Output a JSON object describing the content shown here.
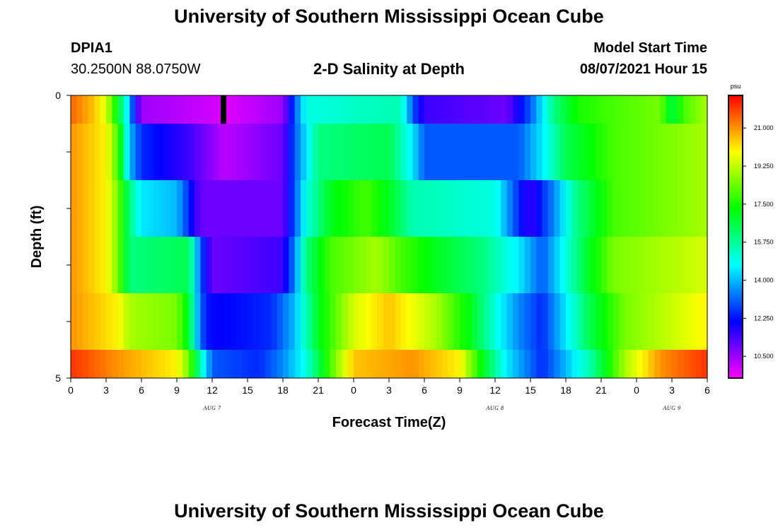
{
  "header": {
    "title_top": "University of Southern Mississippi Ocean Cube",
    "title_bottom": "University of Southern Mississippi Ocean Cube",
    "station": "DPIA1",
    "coords": "30.2500N  88.0750W",
    "plot_title": "2-D Salinity at Depth",
    "model_label": "Model Start Time",
    "model_time": "08/07/2021 Hour 15"
  },
  "chart_data": {
    "type": "heatmap",
    "title": "2-D Salinity at Depth",
    "xlabel": "Forecast Time(Z)",
    "ylabel": "Depth (ft)",
    "x_tick_labels": [
      "0",
      "3",
      "6",
      "9",
      "12",
      "15",
      "18",
      "21",
      "0",
      "3",
      "6",
      "9",
      "12",
      "15",
      "18",
      "21",
      "0",
      "3",
      "6"
    ],
    "y_tick_labels": [
      "0",
      "5"
    ],
    "y_range": [
      0,
      5
    ],
    "x_hours": [
      0,
      54
    ],
    "date_labels": [
      "AUG 7",
      "AUG 8",
      "AUG 9"
    ],
    "colorbar": {
      "units": "psu",
      "range": [
        9.5,
        22.5
      ],
      "tick_values": [
        10.5,
        12.25,
        14.0,
        15.75,
        17.5,
        19.25,
        21.0
      ],
      "tick_labels": [
        "10.500",
        "12.250",
        "14.000",
        "15.750",
        "17.500",
        "19.250",
        "21.000"
      ]
    },
    "rows": [
      {
        "depth_band": "0-0.5 ft",
        "profile": [
          [
            0,
            21.5
          ],
          [
            2,
            20.5
          ],
          [
            3,
            19.5
          ],
          [
            4,
            17
          ],
          [
            5,
            14
          ],
          [
            5.5,
            11.8
          ],
          [
            6,
            10.5
          ],
          [
            12,
            10
          ],
          [
            13,
            9.8
          ],
          [
            18,
            10.5
          ],
          [
            19,
            13
          ],
          [
            20,
            15
          ],
          [
            28,
            15.5
          ],
          [
            29,
            13
          ],
          [
            30,
            11.5
          ],
          [
            37,
            11
          ],
          [
            39,
            13
          ],
          [
            41,
            16
          ],
          [
            43,
            17.5
          ],
          [
            46,
            18
          ],
          [
            50,
            18.5
          ],
          [
            51,
            16.5
          ],
          [
            52,
            18
          ],
          [
            54,
            19
          ]
        ]
      },
      {
        "depth_band": "0.5-1.5 ft",
        "profile": [
          [
            0,
            21
          ],
          [
            3,
            20
          ],
          [
            4,
            18
          ],
          [
            5,
            14
          ],
          [
            6,
            12.5
          ],
          [
            10,
            11.5
          ],
          [
            13,
            10.2
          ],
          [
            18,
            11
          ],
          [
            19,
            13
          ],
          [
            20,
            14.5
          ],
          [
            21,
            16
          ],
          [
            27,
            16.5
          ],
          [
            29,
            14.5
          ],
          [
            30,
            13
          ],
          [
            38,
            13
          ],
          [
            40,
            14.5
          ],
          [
            42,
            16.5
          ],
          [
            46,
            18
          ],
          [
            54,
            19
          ]
        ]
      },
      {
        "depth_band": "1.5-2.5 ft",
        "profile": [
          [
            0,
            21
          ],
          [
            3,
            20
          ],
          [
            4,
            18.5
          ],
          [
            5,
            16
          ],
          [
            6,
            14.5
          ],
          [
            9,
            14
          ],
          [
            10,
            12.5
          ],
          [
            11,
            11
          ],
          [
            18,
            11
          ],
          [
            19,
            13
          ],
          [
            20,
            15
          ],
          [
            22,
            17
          ],
          [
            25,
            18
          ],
          [
            27,
            17
          ],
          [
            29,
            15.5
          ],
          [
            36,
            15
          ],
          [
            38,
            12.5
          ],
          [
            39,
            11.5
          ],
          [
            41,
            13.5
          ],
          [
            43,
            16
          ],
          [
            46,
            18
          ],
          [
            54,
            19
          ]
        ]
      },
      {
        "depth_band": "2.5-3.5 ft",
        "profile": [
          [
            0,
            21
          ],
          [
            3,
            20
          ],
          [
            4,
            18.5
          ],
          [
            5,
            16
          ],
          [
            10,
            16.5
          ],
          [
            11,
            13
          ],
          [
            12,
            11
          ],
          [
            18,
            11.5
          ],
          [
            19,
            13.5
          ],
          [
            20,
            16
          ],
          [
            22,
            18
          ],
          [
            26,
            19
          ],
          [
            28,
            18
          ],
          [
            31,
            17
          ],
          [
            35,
            16
          ],
          [
            38,
            14.5
          ],
          [
            40,
            13
          ],
          [
            42,
            15
          ],
          [
            44,
            17
          ],
          [
            46,
            18.5
          ],
          [
            54,
            19.5
          ]
        ]
      },
      {
        "depth_band": "3.5-4.5 ft",
        "profile": [
          [
            0,
            21
          ],
          [
            4,
            20
          ],
          [
            5,
            19
          ],
          [
            9,
            18.5
          ],
          [
            10,
            17
          ],
          [
            11,
            13
          ],
          [
            12,
            12
          ],
          [
            17,
            12.5
          ],
          [
            19,
            14
          ],
          [
            21,
            17
          ],
          [
            24,
            19.5
          ],
          [
            27,
            20.5
          ],
          [
            31,
            19
          ],
          [
            34,
            17
          ],
          [
            36,
            15
          ],
          [
            38,
            13.5
          ],
          [
            40,
            12.5
          ],
          [
            42,
            14.5
          ],
          [
            44,
            16.5
          ],
          [
            47,
            18.5
          ],
          [
            54,
            20
          ]
        ]
      },
      {
        "depth_band": "4.5-5 ft",
        "profile": [
          [
            0,
            22
          ],
          [
            4,
            21
          ],
          [
            9,
            20
          ],
          [
            10,
            18.5
          ],
          [
            11,
            15.5
          ],
          [
            12,
            13
          ],
          [
            16,
            12.5
          ],
          [
            18,
            13.5
          ],
          [
            20,
            15
          ],
          [
            22,
            18
          ],
          [
            24,
            20.5
          ],
          [
            29,
            21
          ],
          [
            33,
            20
          ],
          [
            35,
            17
          ],
          [
            37,
            14.5
          ],
          [
            40,
            12.5
          ],
          [
            42,
            14
          ],
          [
            44,
            15.5
          ],
          [
            47,
            19
          ],
          [
            50,
            21
          ],
          [
            54,
            22
          ]
        ]
      }
    ]
  }
}
